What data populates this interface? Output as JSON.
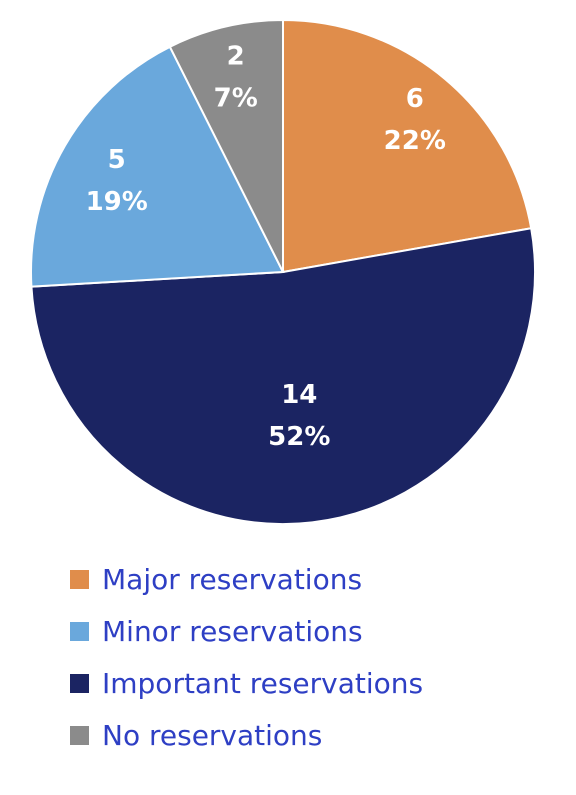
{
  "chart_data": {
    "type": "pie",
    "title": "",
    "start_angle_deg": 0,
    "direction": "clockwise",
    "legend_position": "bottom",
    "slices": [
      {
        "name": "Major reservations",
        "value": 6,
        "percent": "22%",
        "color": "#e08d4b"
      },
      {
        "name": "Important reservations",
        "value": 14,
        "percent": "52%",
        "color": "#1b2462"
      },
      {
        "name": "Minor reservations",
        "value": 5,
        "percent": "19%",
        "color": "#6aa8dc"
      },
      {
        "name": "No reservations",
        "value": 2,
        "percent": "7%",
        "color": "#8b8b8b"
      }
    ],
    "legend": [
      {
        "label": "Major reservations",
        "color": "#e08d4b"
      },
      {
        "label": "Minor reservations",
        "color": "#6aa8dc"
      },
      {
        "label": "Important reservations",
        "color": "#1b2462"
      },
      {
        "label": "No reservations",
        "color": "#8b8b8b"
      }
    ],
    "legend_text_color": "#2e3fc4"
  }
}
